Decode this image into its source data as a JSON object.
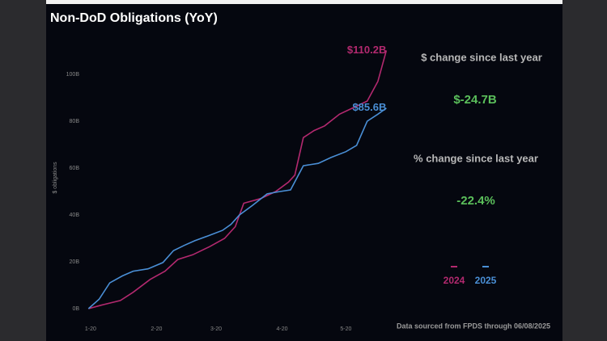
{
  "chart_data": {
    "type": "line",
    "title": "Non-DoD Obligations (YoY)",
    "y_label": "$ obligations",
    "xlim": [
      17,
      160
    ],
    "xticks": [
      {
        "value": 20,
        "label": "1-20"
      },
      {
        "value": 51,
        "label": "2-20"
      },
      {
        "value": 79,
        "label": "3-20"
      },
      {
        "value": 110,
        "label": "4-20"
      },
      {
        "value": 140,
        "label": "5-20"
      }
    ],
    "ylim": [
      -4,
      112
    ],
    "yticks": [
      {
        "value": 0,
        "label": "0B"
      },
      {
        "value": 20,
        "label": "20B"
      },
      {
        "value": 40,
        "label": "40B"
      },
      {
        "value": 60,
        "label": "60B"
      },
      {
        "value": 80,
        "label": "80B"
      },
      {
        "value": 100,
        "label": "100B"
      }
    ],
    "series": [
      {
        "name": "2024",
        "color": "#b3296f",
        "end_label": "$110.2B",
        "x": [
          19,
          25,
          34,
          40,
          48,
          55,
          61,
          68,
          76,
          83,
          88,
          92,
          100,
          107,
          113,
          116,
          120,
          125,
          130,
          137,
          144,
          150,
          155,
          159
        ],
        "values": [
          0,
          1.5,
          3.5,
          7,
          12.5,
          16,
          21,
          23,
          26.5,
          30,
          35,
          45,
          47,
          50,
          54,
          57,
          73,
          76,
          78,
          83,
          86,
          88.6,
          97,
          110.2
        ]
      },
      {
        "name": "2025",
        "color": "#4a8fd6",
        "end_label": "$85.6B",
        "x": [
          19,
          24,
          29,
          35,
          40,
          47,
          54,
          59,
          64,
          69,
          75,
          82,
          86,
          90,
          96,
          103,
          109,
          114,
          120,
          127,
          133,
          140,
          145,
          150,
          155,
          159
        ],
        "values": [
          0,
          4,
          11,
          14,
          16,
          17,
          19.7,
          24.8,
          27,
          29,
          31,
          33.4,
          36,
          40,
          44,
          49,
          50,
          50.7,
          61,
          62,
          64.5,
          67,
          69.7,
          80,
          83,
          85.6
        ]
      }
    ],
    "stats": [
      {
        "label": "$ change since last year",
        "value": "$-24.7B"
      },
      {
        "label": "% change since last year",
        "value": "-22.4%"
      }
    ],
    "footer": "Data sourced from FPDS through 06/08/2025"
  }
}
